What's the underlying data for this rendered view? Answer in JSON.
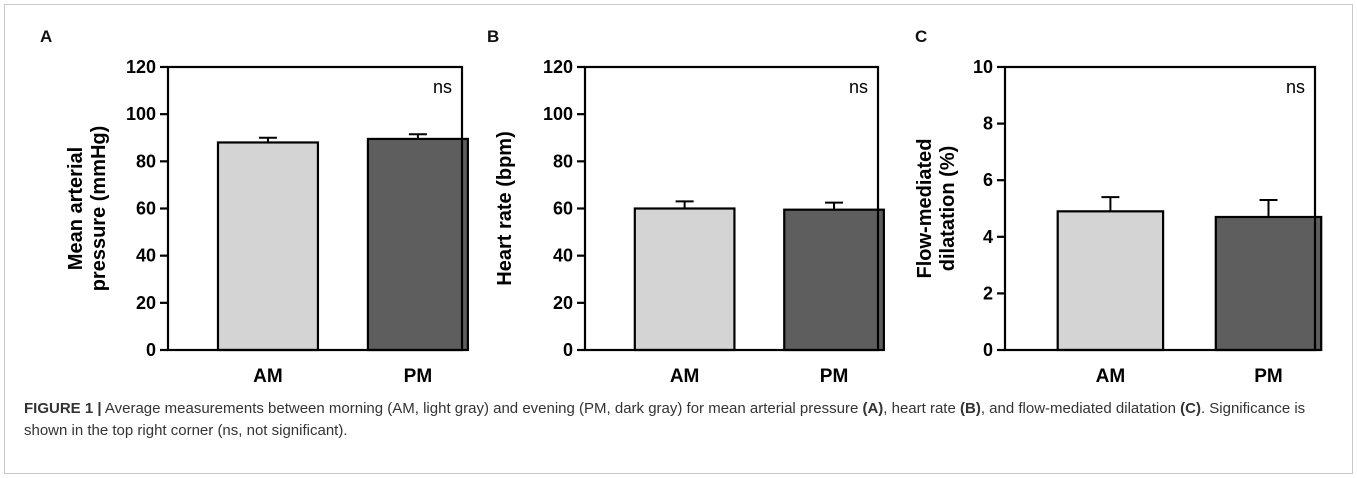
{
  "chart_data": [
    {
      "type": "bar",
      "panel_label": "A",
      "categories": [
        "AM",
        "PM"
      ],
      "values": [
        88,
        89.5
      ],
      "errors": [
        2,
        2
      ],
      "ylabel_lines": [
        "Mean arterial",
        "pressure (mmHg)"
      ],
      "ylim": [
        0,
        120
      ],
      "yticks": [
        "0",
        "20",
        "40",
        "60",
        "80",
        "100",
        "120"
      ],
      "ytick_values": [
        0,
        20,
        40,
        60,
        80,
        100,
        120
      ],
      "significance": "ns",
      "colors": [
        "#d4d4d4",
        "#5e5e5e"
      ]
    },
    {
      "type": "bar",
      "panel_label": "B",
      "categories": [
        "AM",
        "PM"
      ],
      "values": [
        60,
        59.5
      ],
      "errors": [
        3,
        3
      ],
      "ylabel_lines": [
        "Heart rate (bpm)"
      ],
      "ylim": [
        0,
        120
      ],
      "yticks": [
        "0",
        "20",
        "40",
        "60",
        "80",
        "100",
        "120"
      ],
      "ytick_values": [
        0,
        20,
        40,
        60,
        80,
        100,
        120
      ],
      "significance": "ns",
      "colors": [
        "#d4d4d4",
        "#5e5e5e"
      ]
    },
    {
      "type": "bar",
      "panel_label": "C",
      "categories": [
        "AM",
        "PM"
      ],
      "values": [
        4.9,
        4.7
      ],
      "errors": [
        0.5,
        0.6
      ],
      "ylabel_lines": [
        "Flow-mediated",
        "dilatation (%)"
      ],
      "ylim": [
        0,
        10
      ],
      "yticks": [
        "0",
        "2",
        "4",
        "6",
        "8",
        "10"
      ],
      "ytick_values": [
        0,
        2,
        4,
        6,
        8,
        10
      ],
      "significance": "ns",
      "colors": [
        "#d4d4d4",
        "#5e5e5e"
      ]
    }
  ],
  "caption": {
    "figure_label": "FIGURE 1 |",
    "text_1": " Average measurements between morning (AM, light gray) and evening (PM, dark gray) for mean arterial pressure ",
    "ref_a": "(A)",
    "text_2": ", heart rate ",
    "ref_b": "(B)",
    "text_3": ", and flow-mediated dilatation ",
    "ref_c": "(C)",
    "text_4": ". Significance is shown in the top right corner (ns, not significant)."
  }
}
